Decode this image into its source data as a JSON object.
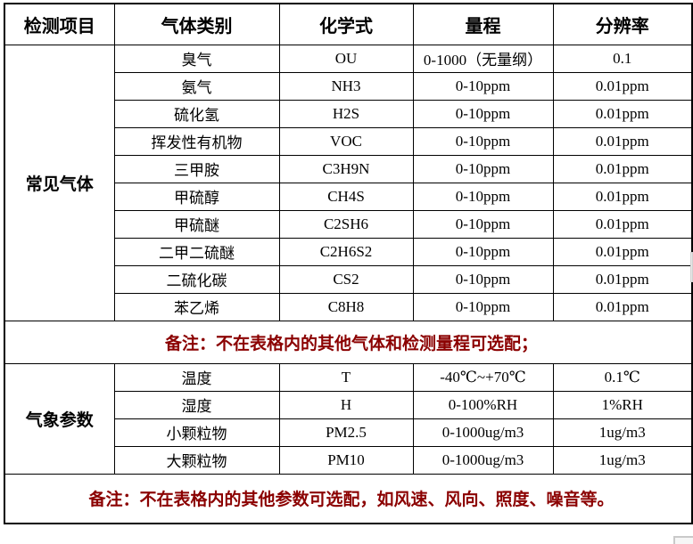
{
  "table": {
    "headers": [
      "检测项目",
      "气体类别",
      "化学式",
      "量程",
      "分辨率"
    ],
    "sections": [
      {
        "category": "常见气体",
        "rows": [
          [
            "臭气",
            "OU",
            "0-1000（无量纲）",
            "0.1"
          ],
          [
            "氨气",
            "NH3",
            "0-10ppm",
            "0.01ppm"
          ],
          [
            "硫化氢",
            "H2S",
            "0-10ppm",
            "0.01ppm"
          ],
          [
            "挥发性有机物",
            "VOC",
            "0-10ppm",
            "0.01ppm"
          ],
          [
            "三甲胺",
            "C3H9N",
            "0-10ppm",
            "0.01ppm"
          ],
          [
            "甲硫醇",
            "CH4S",
            "0-10ppm",
            "0.01ppm"
          ],
          [
            "甲硫醚",
            "C2SH6",
            "0-10ppm",
            "0.01ppm"
          ],
          [
            "二甲二硫醚",
            "C2H6S2",
            "0-10ppm",
            "0.01ppm"
          ],
          [
            "二硫化碳",
            "CS2",
            "0-10ppm",
            "0.01ppm"
          ],
          [
            "苯乙烯",
            "C8H8",
            "0-10ppm",
            "0.01ppm"
          ]
        ],
        "note": "备注：不在表格内的其他气体和检测量程可选配；"
      },
      {
        "category": "气象参数",
        "rows": [
          [
            "温度",
            "T",
            "-40℃~+70℃",
            "0.1℃"
          ],
          [
            "湿度",
            "H",
            "0-100%RH",
            "1%RH"
          ],
          [
            "小颗粒物",
            "PM2.5",
            "0-1000ug/m3",
            "1ug/m3"
          ],
          [
            "大颗粒物",
            "PM10",
            "0-1000ug/m3",
            "1ug/m3"
          ]
        ],
        "note": "备注：不在表格内的其他参数可选配，如风速、风向、照度、噪音等。"
      }
    ]
  },
  "colors": {
    "note_red": "#8B0000",
    "border": "#000000",
    "text": "#000000",
    "background": "#FFFFFF"
  }
}
